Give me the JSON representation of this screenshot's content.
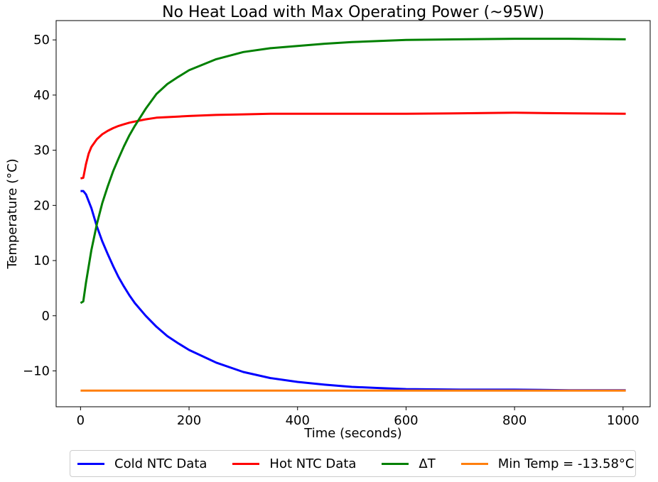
{
  "chart_data": {
    "type": "line",
    "title": "No Heat Load with Max Operating Power (~95W)",
    "xlabel": "Time (seconds)",
    "ylabel": "Temperature (°C)",
    "xlim": [
      -45,
      1050
    ],
    "ylim": [
      -16.5,
      53.5
    ],
    "xticks": [
      0,
      200,
      400,
      600,
      800,
      1000
    ],
    "xtick_labels": [
      "0",
      "200",
      "400",
      "600",
      "800",
      "1000"
    ],
    "yticks": [
      -10,
      0,
      10,
      20,
      30,
      40,
      50
    ],
    "ytick_labels": [
      "−10",
      "0",
      "10",
      "20",
      "30",
      "40",
      "50"
    ],
    "grid": false,
    "legend_position": "bottom-center",
    "series": [
      {
        "name": "Cold NTC Data",
        "color": "#0000ff",
        "x": [
          0,
          5,
          10,
          20,
          30,
          40,
          50,
          60,
          70,
          80,
          90,
          100,
          120,
          140,
          160,
          180,
          200,
          250,
          300,
          350,
          400,
          450,
          500,
          550,
          600,
          700,
          800,
          900,
          1005
        ],
        "y": [
          22.6,
          22.6,
          22.0,
          19.5,
          16.2,
          13.5,
          11.2,
          9.0,
          7.0,
          5.3,
          3.7,
          2.3,
          0.0,
          -2.0,
          -3.7,
          -5.0,
          -6.2,
          -8.5,
          -10.2,
          -11.3,
          -12.0,
          -12.5,
          -12.9,
          -13.1,
          -13.3,
          -13.4,
          -13.4,
          -13.5,
          -13.5
        ]
      },
      {
        "name": "Hot NTC Data",
        "color": "#ff0000",
        "x": [
          0,
          5,
          10,
          15,
          20,
          30,
          40,
          50,
          60,
          70,
          80,
          90,
          100,
          120,
          140,
          160,
          180,
          200,
          250,
          300,
          350,
          400,
          500,
          600,
          700,
          800,
          900,
          1005
        ],
        "y": [
          24.9,
          25.0,
          27.5,
          29.4,
          30.6,
          32.0,
          32.9,
          33.5,
          34.0,
          34.4,
          34.7,
          35.0,
          35.2,
          35.6,
          35.9,
          36.0,
          36.1,
          36.2,
          36.4,
          36.5,
          36.6,
          36.6,
          36.6,
          36.6,
          36.7,
          36.8,
          36.7,
          36.6
        ]
      },
      {
        "name": "ΔT",
        "color": "#008000",
        "x": [
          0,
          5,
          10,
          20,
          30,
          40,
          50,
          60,
          70,
          80,
          90,
          100,
          120,
          140,
          160,
          180,
          200,
          250,
          300,
          350,
          400,
          450,
          500,
          550,
          600,
          700,
          800,
          900,
          1005
        ],
        "y": [
          2.3,
          2.6,
          6.0,
          11.9,
          16.6,
          20.4,
          23.4,
          26.2,
          28.5,
          30.7,
          32.7,
          34.4,
          37.5,
          40.2,
          42.0,
          43.3,
          44.5,
          46.5,
          47.8,
          48.5,
          48.9,
          49.3,
          49.6,
          49.8,
          50.0,
          50.1,
          50.2,
          50.2,
          50.1
        ]
      },
      {
        "name": "Min Temp = -13.58°C",
        "color": "#ff7f0e",
        "x": [
          0,
          1005
        ],
        "y": [
          -13.58,
          -13.58
        ]
      }
    ]
  }
}
